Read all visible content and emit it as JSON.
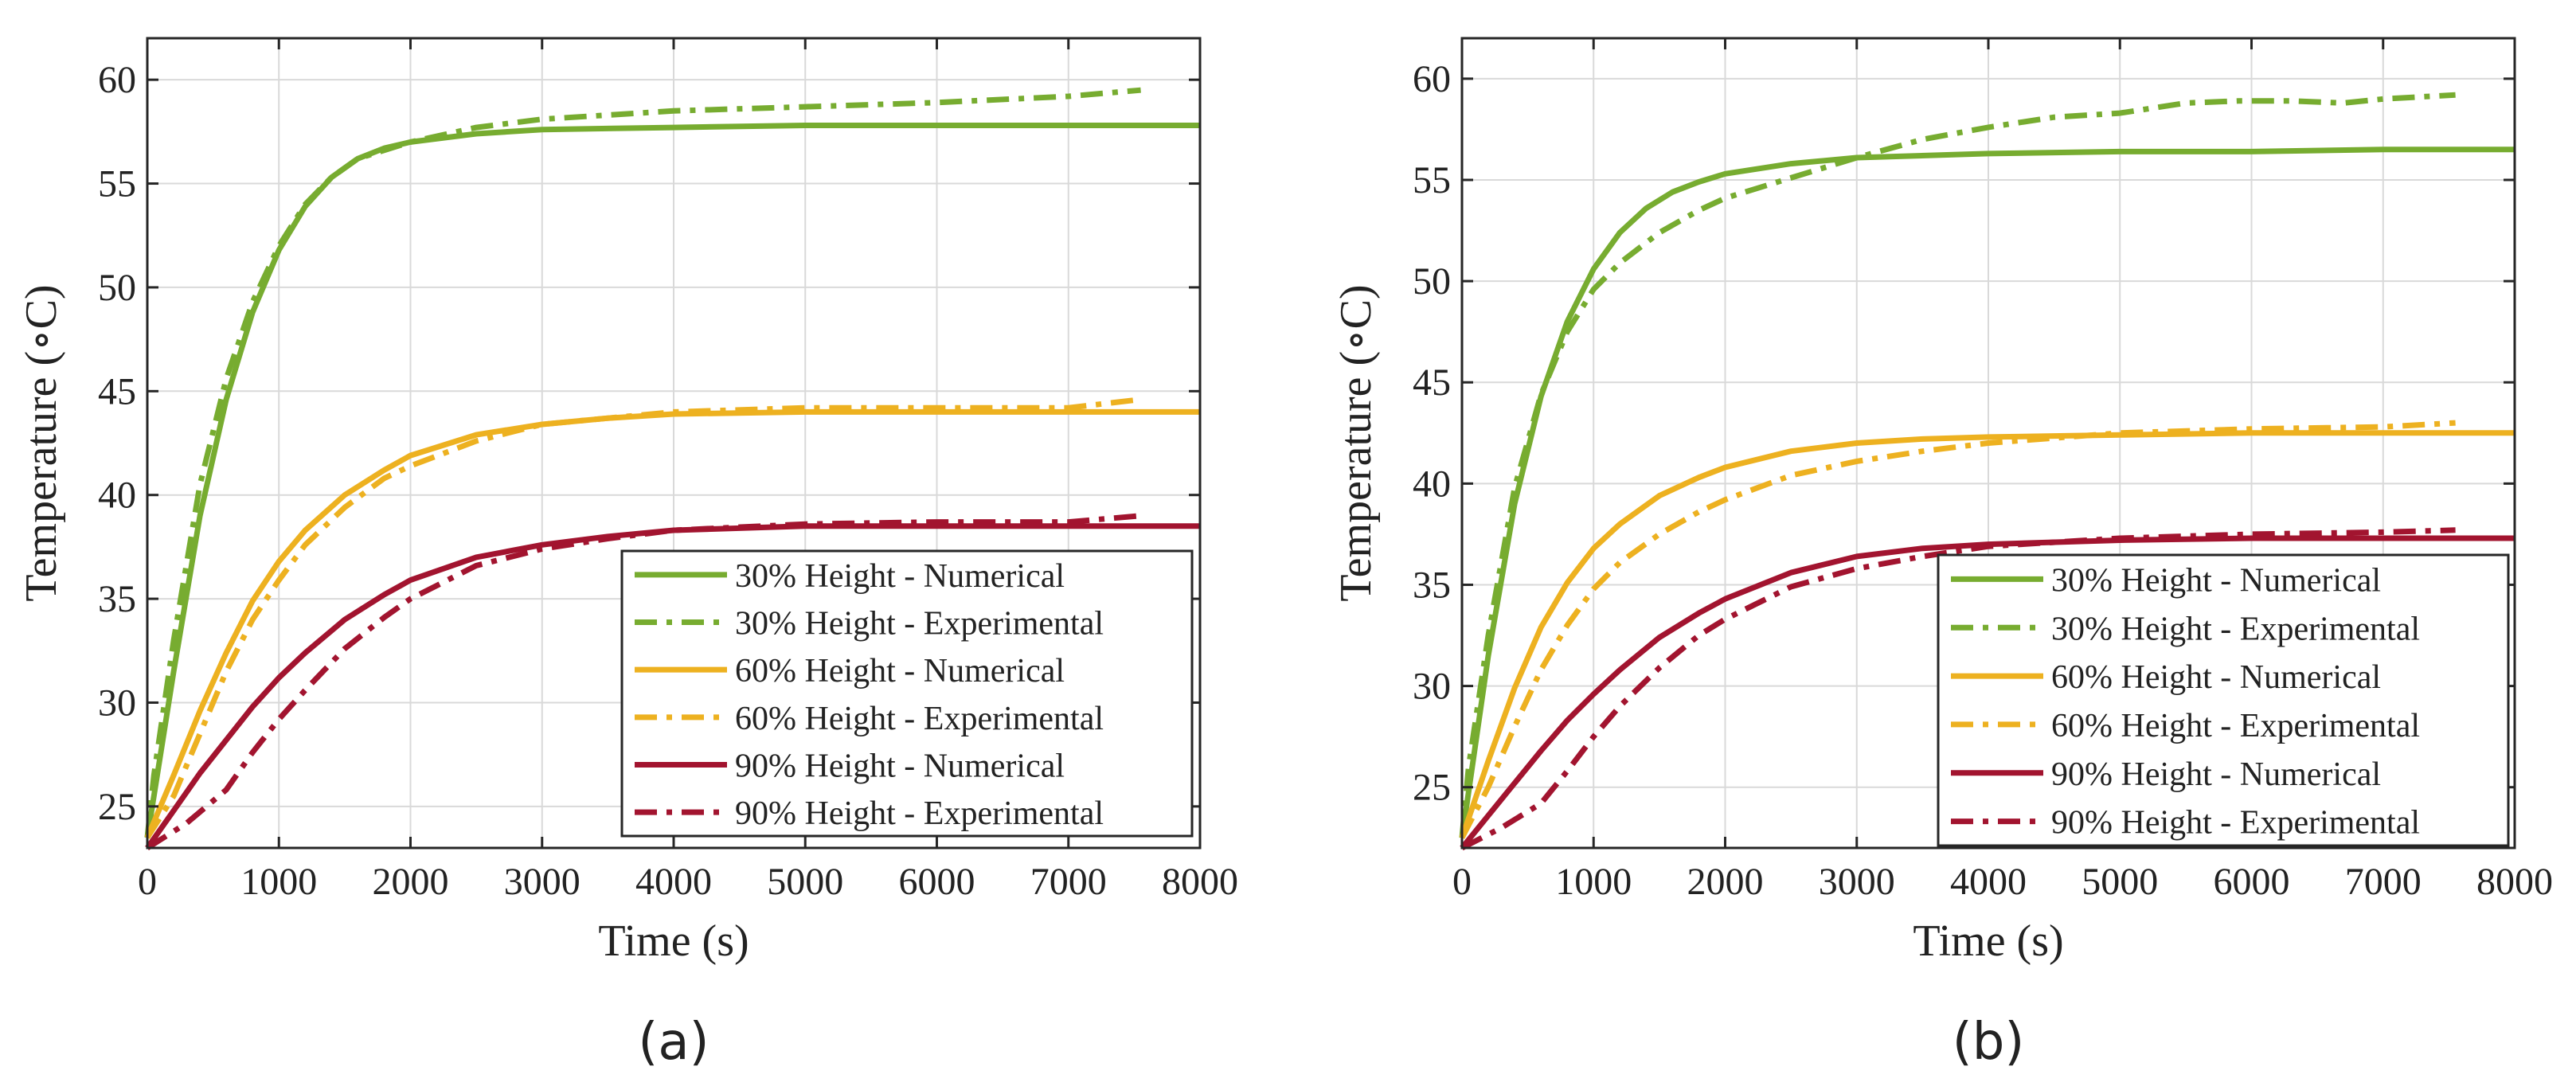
{
  "chart_data": [
    {
      "type": "line",
      "panel_label": "(a)",
      "xlabel": "Time (s)",
      "ylabel": "Temperature (∘C)",
      "xlim": [
        0,
        8000
      ],
      "ylim": [
        23,
        62
      ],
      "xticks": [
        0,
        1000,
        2000,
        3000,
        4000,
        5000,
        6000,
        7000,
        8000
      ],
      "yticks": [
        25,
        30,
        35,
        40,
        45,
        50,
        55,
        60
      ],
      "grid": true,
      "legend_position": "bottom-right",
      "series": [
        {
          "name": "30% Height - Numerical",
          "color": "#77AC30",
          "style": "solid",
          "x": [
            0,
            200,
            400,
            600,
            800,
            1000,
            1200,
            1400,
            1600,
            1800,
            2000,
            2500,
            3000,
            4000,
            5000,
            6000,
            7000,
            8000
          ],
          "y": [
            23.5,
            31.5,
            39.0,
            44.6,
            48.8,
            51.8,
            53.9,
            55.3,
            56.2,
            56.7,
            57.0,
            57.4,
            57.6,
            57.7,
            57.8,
            57.8,
            57.8,
            57.8
          ]
        },
        {
          "name": "30% Height - Experimental",
          "color": "#77AC30",
          "style": "dashdot",
          "x": [
            0,
            50,
            200,
            400,
            600,
            800,
            1000,
            1200,
            1400,
            1600,
            1800,
            2000,
            2500,
            3000,
            3500,
            4000,
            5000,
            6000,
            7000,
            7550
          ],
          "y": [
            23.5,
            26.5,
            33.0,
            40.5,
            45.6,
            49.3,
            52.0,
            54.0,
            55.3,
            56.2,
            56.6,
            57.0,
            57.7,
            58.1,
            58.3,
            58.5,
            58.7,
            58.9,
            59.2,
            59.5
          ]
        },
        {
          "name": "60% Height - Numerical",
          "color": "#EDB120",
          "style": "solid",
          "x": [
            0,
            200,
            400,
            600,
            800,
            1000,
            1200,
            1500,
            1800,
            2000,
            2500,
            3000,
            3500,
            4000,
            5000,
            6000,
            7000,
            8000
          ],
          "y": [
            23.5,
            26.5,
            29.6,
            32.4,
            34.9,
            36.8,
            38.3,
            40.0,
            41.2,
            41.9,
            42.9,
            43.4,
            43.7,
            43.9,
            44.0,
            44.0,
            44.0,
            44.0
          ]
        },
        {
          "name": "60% Height - Experimental",
          "color": "#EDB120",
          "style": "dashdot",
          "x": [
            0,
            200,
            400,
            600,
            800,
            1000,
            1200,
            1500,
            1800,
            2000,
            2500,
            3000,
            3500,
            4000,
            5000,
            6000,
            7000,
            7550
          ],
          "y": [
            23.5,
            25.5,
            28.5,
            31.5,
            34.0,
            35.9,
            37.6,
            39.4,
            40.8,
            41.4,
            42.6,
            43.4,
            43.7,
            44.0,
            44.2,
            44.2,
            44.2,
            44.6
          ]
        },
        {
          "name": "90% Height - Numerical",
          "color": "#A2142F",
          "style": "solid",
          "x": [
            0,
            200,
            400,
            600,
            800,
            1000,
            1200,
            1500,
            1800,
            2000,
            2500,
            3000,
            3500,
            4000,
            5000,
            6000,
            7000,
            8000
          ],
          "y": [
            23.0,
            24.8,
            26.6,
            28.2,
            29.8,
            31.2,
            32.4,
            34.0,
            35.2,
            35.9,
            37.0,
            37.6,
            38.0,
            38.3,
            38.5,
            38.5,
            38.5,
            38.5
          ]
        },
        {
          "name": "90% Height - Experimental",
          "color": "#A2142F",
          "style": "dashdot",
          "x": [
            0,
            300,
            600,
            800,
            1000,
            1200,
            1500,
            1800,
            2000,
            2500,
            3000,
            3500,
            4000,
            5000,
            6000,
            7000,
            7550
          ],
          "y": [
            23.0,
            24.2,
            25.8,
            27.6,
            29.2,
            30.6,
            32.6,
            34.1,
            35.0,
            36.6,
            37.4,
            37.9,
            38.3,
            38.6,
            38.7,
            38.7,
            39.0
          ]
        }
      ]
    },
    {
      "type": "line",
      "panel_label": "(b)",
      "xlabel": "Time (s)",
      "ylabel": "Temperature (∘C)",
      "xlim": [
        0,
        8000
      ],
      "ylim": [
        22,
        62
      ],
      "xticks": [
        0,
        1000,
        2000,
        3000,
        4000,
        5000,
        6000,
        7000,
        8000
      ],
      "yticks": [
        25,
        30,
        35,
        40,
        45,
        50,
        55,
        60
      ],
      "grid": true,
      "legend_position": "bottom-right",
      "series": [
        {
          "name": "30% Height - Numerical",
          "color": "#77AC30",
          "style": "solid",
          "x": [
            0,
            200,
            400,
            600,
            800,
            1000,
            1200,
            1400,
            1600,
            1800,
            2000,
            2500,
            3000,
            4000,
            5000,
            6000,
            7000,
            8000
          ],
          "y": [
            22.5,
            31.5,
            39.0,
            44.3,
            48.0,
            50.6,
            52.4,
            53.6,
            54.4,
            54.9,
            55.3,
            55.8,
            56.1,
            56.3,
            56.4,
            56.4,
            56.5,
            56.5
          ]
        },
        {
          "name": "30% Height - Experimental",
          "color": "#77AC30",
          "style": "dashdot",
          "x": [
            0,
            50,
            200,
            400,
            600,
            800,
            1000,
            1200,
            1500,
            1800,
            2000,
            2500,
            3000,
            3500,
            4000,
            4500,
            5000,
            5500,
            5900,
            6300,
            6700,
            7000,
            7550
          ],
          "y": [
            22.5,
            26.0,
            32.5,
            39.8,
            44.4,
            47.5,
            49.6,
            50.9,
            52.4,
            53.5,
            54.1,
            55.1,
            56.1,
            57.0,
            57.6,
            58.1,
            58.3,
            58.8,
            58.9,
            58.9,
            58.8,
            59.0,
            59.2
          ]
        },
        {
          "name": "60% Height - Numerical",
          "color": "#EDB120",
          "style": "solid",
          "x": [
            0,
            200,
            400,
            600,
            800,
            1000,
            1200,
            1500,
            1800,
            2000,
            2500,
            3000,
            3500,
            4000,
            5000,
            6000,
            7000,
            8000
          ],
          "y": [
            22.5,
            26.3,
            29.9,
            32.9,
            35.1,
            36.8,
            38.0,
            39.4,
            40.3,
            40.8,
            41.6,
            42.0,
            42.2,
            42.3,
            42.4,
            42.5,
            42.5,
            42.5
          ]
        },
        {
          "name": "60% Height - Experimental",
          "color": "#EDB120",
          "style": "dashdot",
          "x": [
            0,
            200,
            400,
            600,
            800,
            1000,
            1200,
            1500,
            1800,
            2000,
            2500,
            3000,
            3500,
            4000,
            5000,
            6000,
            7000,
            7550
          ],
          "y": [
            22.5,
            25.0,
            28.0,
            30.8,
            33.0,
            34.8,
            36.1,
            37.5,
            38.6,
            39.2,
            40.4,
            41.1,
            41.6,
            42.0,
            42.5,
            42.7,
            42.8,
            43.0
          ]
        },
        {
          "name": "90% Height - Numerical",
          "color": "#A2142F",
          "style": "solid",
          "x": [
            0,
            200,
            400,
            600,
            800,
            1000,
            1200,
            1500,
            1800,
            2000,
            2500,
            3000,
            3500,
            4000,
            5000,
            6000,
            7000,
            8000
          ],
          "y": [
            22.0,
            23.6,
            25.2,
            26.8,
            28.3,
            29.6,
            30.8,
            32.4,
            33.6,
            34.3,
            35.6,
            36.4,
            36.8,
            37.0,
            37.2,
            37.3,
            37.3,
            37.3
          ]
        },
        {
          "name": "90% Height - Experimental",
          "color": "#A2142F",
          "style": "dashdot",
          "x": [
            0,
            300,
            600,
            800,
            1000,
            1200,
            1500,
            1800,
            2000,
            2500,
            3000,
            3500,
            4000,
            5000,
            6000,
            7000,
            7550
          ],
          "y": [
            22.0,
            23.0,
            24.2,
            25.8,
            27.5,
            29.0,
            30.9,
            32.5,
            33.3,
            34.9,
            35.8,
            36.4,
            36.9,
            37.3,
            37.5,
            37.6,
            37.7
          ]
        }
      ]
    }
  ]
}
